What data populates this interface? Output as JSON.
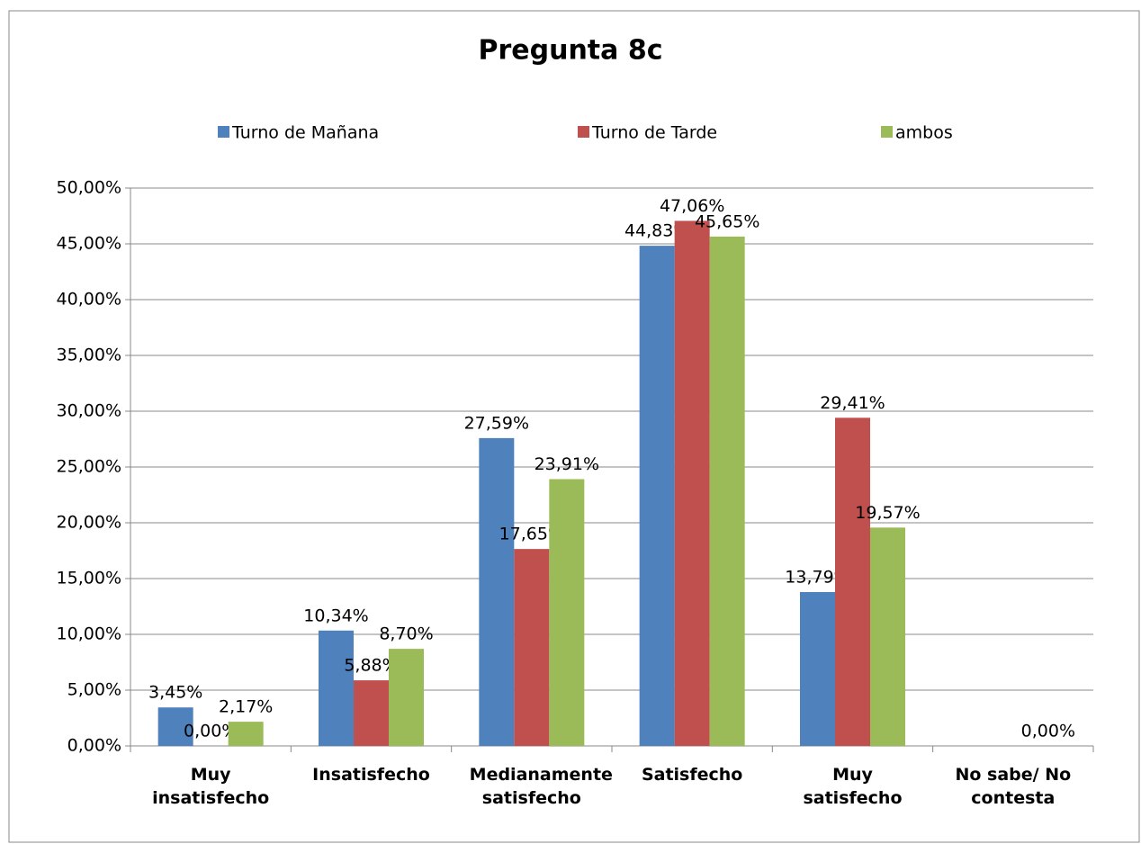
{
  "chart_data": {
    "type": "bar",
    "title": "Pregunta 8c",
    "categories": [
      "Muy insatisfecho",
      "Insatisfecho",
      "Medianamente satisfecho",
      "Satisfecho",
      "Muy satisfecho",
      "No sabe/ No contesta"
    ],
    "series": [
      {
        "name": "Turno de Mañana",
        "color": "#4f81bd",
        "values": [
          3.45,
          10.34,
          27.59,
          44.83,
          13.79,
          null
        ],
        "value_labels": [
          "3,45%",
          "10,34%",
          "27,59%",
          "44,83%",
          "13,79%",
          null
        ]
      },
      {
        "name": "Turno de Tarde",
        "color": "#c0504d",
        "values": [
          0,
          5.88,
          17.65,
          47.06,
          29.41,
          null
        ],
        "value_labels": [
          "0,00%",
          "5,88%",
          "17,65%",
          "47,06%",
          "29,41%",
          null
        ]
      },
      {
        "name": "ambos",
        "color": "#9bbb59",
        "values": [
          2.17,
          8.7,
          23.91,
          45.65,
          19.57,
          0
        ],
        "value_labels": [
          "2,17%",
          "8,70%",
          "23,91%",
          "45,65%",
          "19,57%",
          "0,00%"
        ]
      }
    ],
    "ylim": [
      0,
      50
    ],
    "yticks": [
      {
        "value": 0,
        "label": "0,00%"
      },
      {
        "value": 5,
        "label": "5,00%"
      },
      {
        "value": 10,
        "label": "10,00%"
      },
      {
        "value": 15,
        "label": "15,00%"
      },
      {
        "value": 20,
        "label": "20,00%"
      },
      {
        "value": 25,
        "label": "25,00%"
      },
      {
        "value": 30,
        "label": "30,00%"
      },
      {
        "value": 35,
        "label": "35,00%"
      },
      {
        "value": 40,
        "label": "40,00%"
      },
      {
        "value": 45,
        "label": "45,00%"
      },
      {
        "value": 50,
        "label": "50,00%"
      }
    ],
    "grid": true,
    "legend": "top"
  }
}
